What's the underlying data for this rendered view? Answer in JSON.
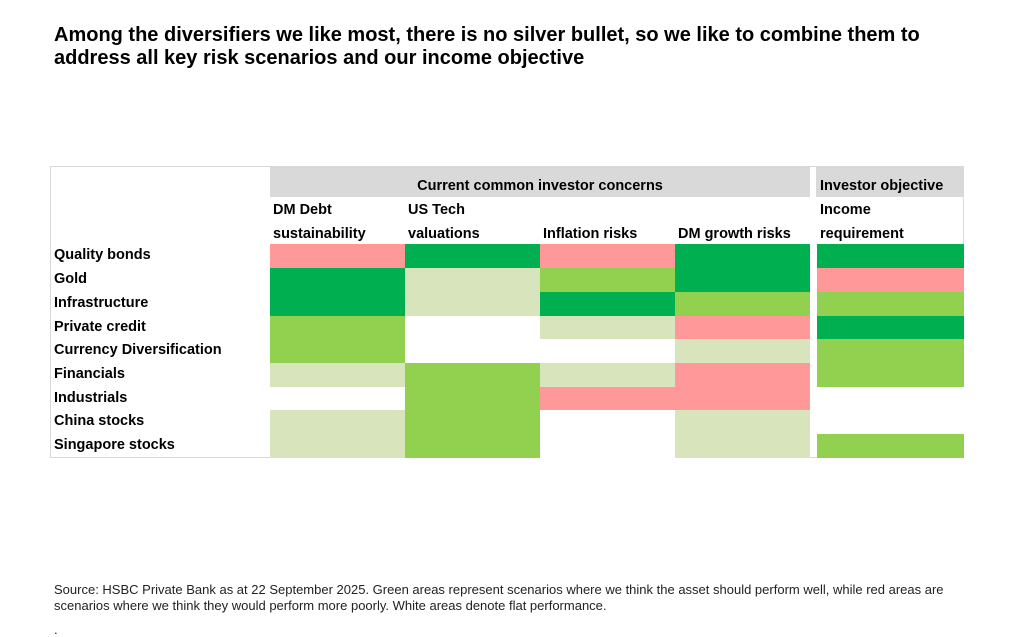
{
  "title": "Among the diversifiers we like most, there is no silver bullet, so we like to combine them to address all key risk scenarios and our income objective",
  "chart_data": {
    "type": "table",
    "column_groups": [
      {
        "label": "Current common investor concerns"
      },
      {
        "label": "Investor objective"
      }
    ],
    "columns": [
      {
        "line1": "DM Debt",
        "line2": "sustainability"
      },
      {
        "line1": "US Tech",
        "line2": "valuations"
      },
      {
        "line1": "",
        "line2": "Inflation risks"
      },
      {
        "line1": "",
        "line2": "DM growth risks"
      },
      {
        "line1": "Income",
        "line2": "requirement"
      }
    ],
    "rows": [
      "Quality bonds",
      "Gold",
      "Infrastructure",
      "Private credit",
      "Currency Diversification",
      "Financials",
      "Industrials",
      "China stocks",
      "Singapore stocks"
    ],
    "cells": [
      [
        "red",
        "dark-green",
        "red",
        "dark-green",
        "dark-green"
      ],
      [
        "dark-green",
        "pale-green",
        "green",
        "dark-green",
        "red"
      ],
      [
        "dark-green",
        "pale-green",
        "dark-green",
        "green",
        "green"
      ],
      [
        "green",
        "white",
        "pale-green",
        "red",
        "dark-green"
      ],
      [
        "green",
        "white",
        "white",
        "pale-green",
        "green"
      ],
      [
        "pale-green",
        "green",
        "pale-green",
        "red",
        "green"
      ],
      [
        "white",
        "green",
        "red",
        "red",
        "white"
      ],
      [
        "pale-green",
        "green",
        "white",
        "pale-green",
        "white"
      ],
      [
        "pale-green",
        "green",
        "white",
        "pale-green",
        "green"
      ]
    ],
    "colors": {
      "dark-green": "#00b050",
      "green": "#92d050",
      "pale-green": "#d8e4bc",
      "red": "#ff9999",
      "white": "#ffffff",
      "header-band": "#d9d9d9"
    }
  },
  "source": "Source: HSBC Private Bank as at 22 September 2025. Green areas represent scenarios where we think the asset should perform well, while red areas are scenarios where we think they would perform more poorly. White areas denote flat performance.",
  "trailing_mark": "."
}
